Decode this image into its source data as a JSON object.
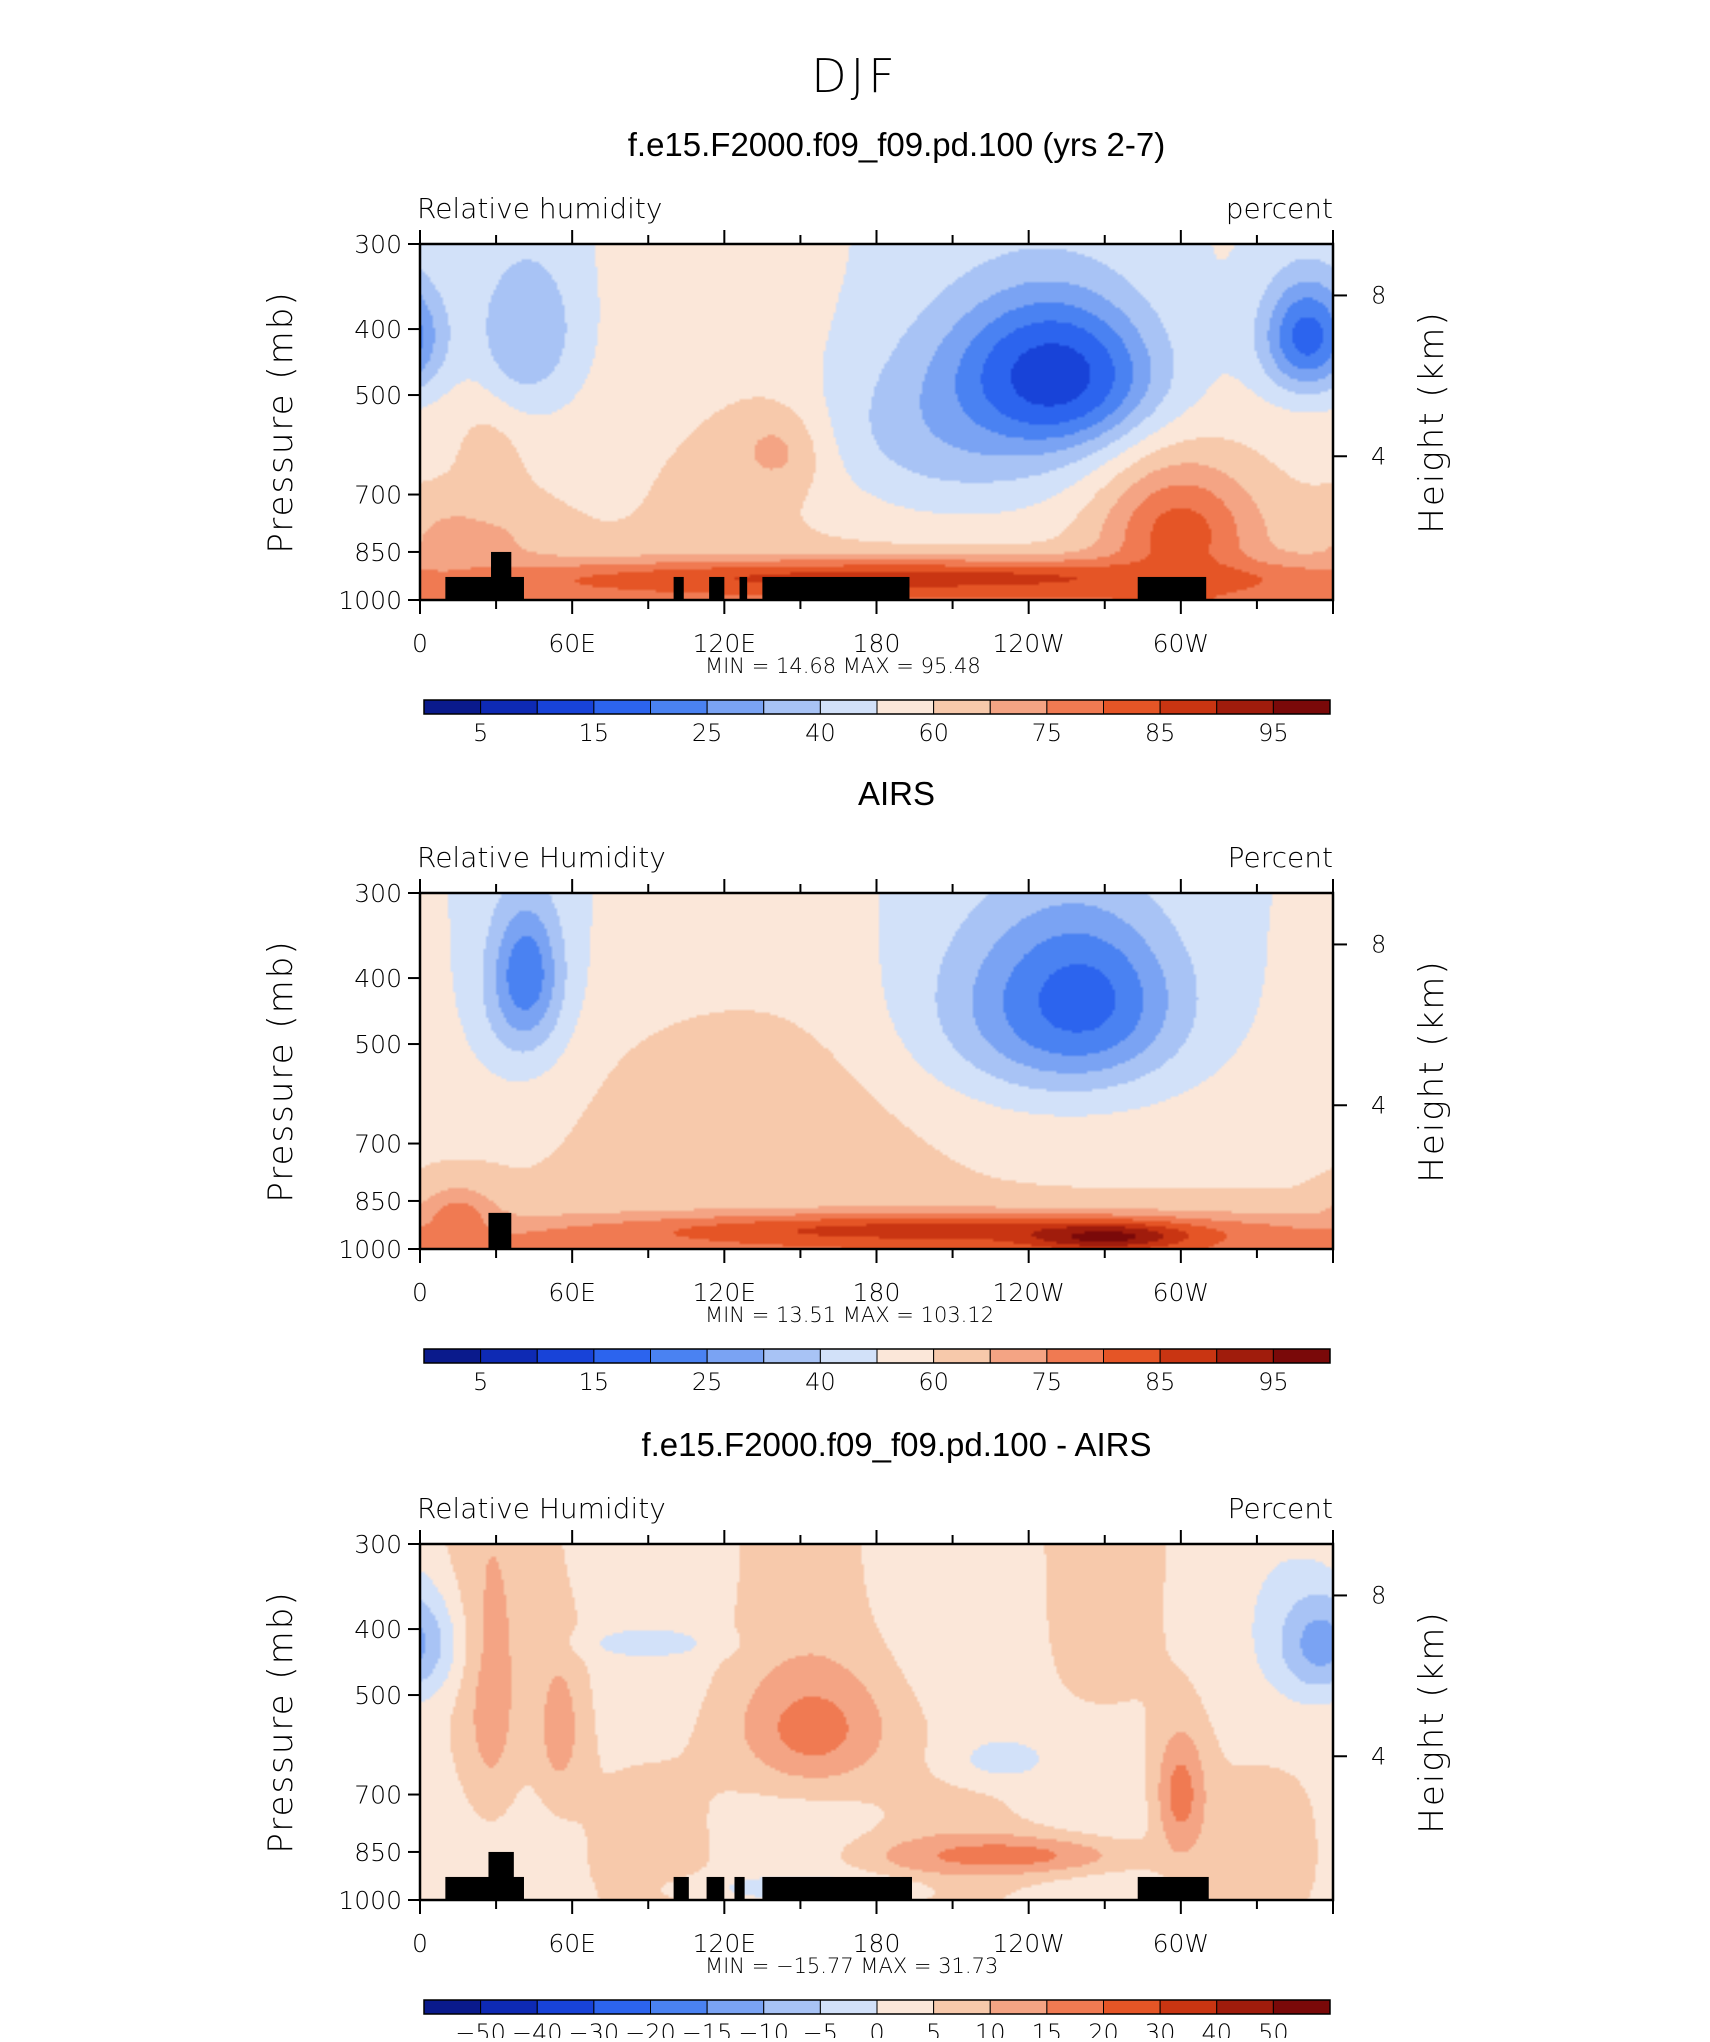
{
  "figure_title": "DJF",
  "chart_data": [
    {
      "type": "heatmap",
      "title": "f.e15.F2000.f09_f09.pd.100 (yrs 2-7)",
      "left_label": "Relative  humidity",
      "right_label": "percent",
      "ylabel": "Pressure (mb)",
      "y2label": "Height (km)",
      "xticks": [
        "0",
        "60E",
        "120E",
        "180",
        "120W",
        "60W"
      ],
      "xtick_lon": [
        0,
        60,
        120,
        180,
        240,
        300
      ],
      "xlim": [
        0,
        360
      ],
      "ylim": [
        1000,
        300
      ],
      "yticks": [
        "300",
        "400",
        "500",
        "700",
        "850",
        "1000"
      ],
      "ytick_values": [
        300,
        400,
        500,
        700,
        850,
        1000
      ],
      "y2ticks": [
        "8",
        "4"
      ],
      "y2tick_pressure": [
        357,
        615
      ],
      "min_label": "MIN =",
      "min_value": "14.68",
      "max_label": "MAX =",
      "max_value": "95.48",
      "colorbar_levels": [
        5,
        10,
        15,
        20,
        25,
        30,
        40,
        50,
        60,
        70,
        75,
        80,
        85,
        90,
        95
      ],
      "colorbar_labels": [
        "5",
        "15",
        "25",
        "40",
        "60",
        "75",
        "85",
        "95"
      ],
      "colorbar_colors": [
        "#0a1a8c",
        "#0e2ab4",
        "#1843d8",
        "#2c64ee",
        "#4a82f2",
        "#7aa3f3",
        "#a8c3f5",
        "#d2e1f9",
        "#fbe7d9",
        "#f7c9ab",
        "#f4a484",
        "#f07a52",
        "#e55526",
        "#c93512",
        "#a01c0c",
        "#7a0909"
      ],
      "blobs": [
        {
          "lon": 20,
          "p": 810,
          "rl": 28,
          "rp": 110,
          "level": 10
        },
        {
          "lon": 28,
          "p": 600,
          "rl": 14,
          "rp": 160,
          "level": 9
        },
        {
          "lon": 42,
          "p": 390,
          "rl": 12,
          "rp": 60,
          "level": 4
        },
        {
          "lon": 42,
          "p": 420,
          "rl": 22,
          "rp": 110,
          "level": 6
        },
        {
          "lon": 140,
          "p": 640,
          "rl": 50,
          "rp": 220,
          "level": 9
        },
        {
          "lon": 144,
          "p": 600,
          "rl": 18,
          "rp": 80,
          "level": 11
        },
        {
          "lon": 210,
          "p": 560,
          "rl": 60,
          "rp": 190,
          "level": 6
        },
        {
          "lon": 248,
          "p": 470,
          "rl": 42,
          "rp": 130,
          "level": 3
        },
        {
          "lon": 250,
          "p": 470,
          "rl": 26,
          "rp": 80,
          "level": 2
        },
        {
          "lon": 300,
          "p": 800,
          "rl": 30,
          "rp": 180,
          "level": 12
        },
        {
          "lon": 350,
          "p": 410,
          "rl": 18,
          "rp": 80,
          "level": 3
        },
        {
          "lon": 190,
          "p": 930,
          "rl": 170,
          "rp": 60,
          "level": 13
        }
      ],
      "land": [
        {
          "lon0": 10,
          "lon1": 41,
          "ptop": 925
        },
        {
          "lon0": 28,
          "lon1": 36,
          "ptop": 850
        },
        {
          "lon0": 100,
          "lon1": 104,
          "ptop": 925
        },
        {
          "lon0": 114,
          "lon1": 120,
          "ptop": 925
        },
        {
          "lon0": 126,
          "lon1": 129,
          "ptop": 925
        },
        {
          "lon0": 135,
          "lon1": 193,
          "ptop": 925
        },
        {
          "lon0": 283,
          "lon1": 310,
          "ptop": 925
        }
      ]
    },
    {
      "type": "heatmap",
      "title": "AIRS",
      "left_label": "Relative  Humidity",
      "right_label": "Percent",
      "ylabel": "Pressure (mb)",
      "y2label": "Height (km)",
      "xticks": [
        "0",
        "60E",
        "120E",
        "180",
        "120W",
        "60W"
      ],
      "xtick_lon": [
        0,
        60,
        120,
        180,
        240,
        300
      ],
      "xlim": [
        0,
        360
      ],
      "ylim": [
        1000,
        300
      ],
      "yticks": [
        "300",
        "400",
        "500",
        "700",
        "850",
        "1000"
      ],
      "ytick_values": [
        300,
        400,
        500,
        700,
        850,
        1000
      ],
      "y2ticks": [
        "8",
        "4"
      ],
      "y2tick_pressure": [
        357,
        615
      ],
      "min_label": "MIN =",
      "min_value": "13.51",
      "max_label": "MAX =",
      "max_value": "103.12",
      "colorbar_levels": [
        5,
        10,
        15,
        20,
        25,
        30,
        40,
        50,
        60,
        70,
        75,
        80,
        85,
        90,
        95
      ],
      "colorbar_labels": [
        "5",
        "15",
        "25",
        "40",
        "60",
        "75",
        "85",
        "95"
      ],
      "colorbar_colors": [
        "#0a1a8c",
        "#0e2ab4",
        "#1843d8",
        "#2c64ee",
        "#4a82f2",
        "#7aa3f3",
        "#a8c3f5",
        "#d2e1f9",
        "#fbe7d9",
        "#f7c9ab",
        "#f4a484",
        "#f07a52",
        "#e55526",
        "#c93512",
        "#a01c0c",
        "#7a0909"
      ],
      "blobs": [
        {
          "lon": 42,
          "p": 420,
          "rl": 20,
          "rp": 140,
          "level": 5
        },
        {
          "lon": 42,
          "p": 400,
          "rl": 10,
          "rp": 70,
          "level": 3
        },
        {
          "lon": 135,
          "p": 620,
          "rl": 80,
          "rp": 240,
          "level": 9
        },
        {
          "lon": 250,
          "p": 440,
          "rl": 55,
          "rp": 160,
          "level": 5
        },
        {
          "lon": 260,
          "p": 430,
          "rl": 30,
          "rp": 100,
          "level": 3
        },
        {
          "lon": 200,
          "p": 940,
          "rl": 130,
          "rp": 55,
          "level": 13
        },
        {
          "lon": 270,
          "p": 960,
          "rl": 30,
          "rp": 40,
          "level": 15
        },
        {
          "lon": 15,
          "p": 900,
          "rl": 15,
          "rp": 90,
          "level": 11
        }
      ],
      "land": [
        {
          "lon0": 27,
          "lon1": 36,
          "ptop": 885
        }
      ]
    },
    {
      "type": "heatmap",
      "title": "f.e15.F2000.f09_f09.pd.100 - AIRS",
      "left_label": "Relative  Humidity",
      "right_label": "Percent",
      "ylabel": "Pressure (mb)",
      "y2label": "Height (km)",
      "xticks": [
        "0",
        "60E",
        "120E",
        "180",
        "120W",
        "60W"
      ],
      "xtick_lon": [
        0,
        60,
        120,
        180,
        240,
        300
      ],
      "xlim": [
        0,
        360
      ],
      "ylim": [
        1000,
        300
      ],
      "yticks": [
        "300",
        "400",
        "500",
        "700",
        "850",
        "1000"
      ],
      "ytick_values": [
        300,
        400,
        500,
        700,
        850,
        1000
      ],
      "y2ticks": [
        "8",
        "4"
      ],
      "y2tick_pressure": [
        357,
        615
      ],
      "min_label": "MIN =",
      "min_value": "−15.77",
      "max_label": "MAX =",
      "max_value": "31.73",
      "colorbar_levels": [
        -50,
        -40,
        -30,
        -20,
        -15,
        -10,
        -5,
        0,
        5,
        10,
        15,
        20,
        30,
        40,
        50
      ],
      "colorbar_labels": [
        "−50",
        "−40",
        "−30",
        "−20",
        "−15",
        "−10",
        "−5",
        "0",
        "5",
        "10",
        "15",
        "20",
        "30",
        "40",
        "50"
      ],
      "colorbar_colors": [
        "#0a1a8c",
        "#0e2ab4",
        "#1843d8",
        "#2c64ee",
        "#4a82f2",
        "#7aa3f3",
        "#a8c3f5",
        "#d2e1f9",
        "#fbe7d9",
        "#f7c9ab",
        "#f4a484",
        "#f07a52",
        "#e55526",
        "#c93512",
        "#a01c0c",
        "#7a0909"
      ],
      "blobs": [
        {
          "lon": 155,
          "p": 560,
          "rl": 30,
          "rp": 120,
          "level": 11
        },
        {
          "lon": 230,
          "p": 860,
          "rl": 50,
          "rp": 60,
          "level": 11
        },
        {
          "lon": 28,
          "p": 500,
          "rl": 12,
          "rp": 250,
          "level": 10
        },
        {
          "lon": 55,
          "p": 560,
          "rl": 10,
          "rp": 150,
          "level": 10
        },
        {
          "lon": 300,
          "p": 700,
          "rl": 10,
          "rp": 150,
          "level": 11
        },
        {
          "lon": 355,
          "p": 420,
          "rl": 18,
          "rp": 80,
          "level": 5
        },
        {
          "lon": 90,
          "p": 420,
          "rl": 25,
          "rp": 20,
          "level": 7
        },
        {
          "lon": 150,
          "p": 960,
          "rl": 40,
          "rp": 40,
          "level": 7
        },
        {
          "lon": 230,
          "p": 620,
          "rl": 20,
          "rp": 50,
          "level": 7
        }
      ],
      "land": [
        {
          "lon0": 10,
          "lon1": 41,
          "ptop": 925
        },
        {
          "lon0": 27,
          "lon1": 37,
          "ptop": 850
        },
        {
          "lon0": 100,
          "lon1": 106,
          "ptop": 925
        },
        {
          "lon0": 113,
          "lon1": 120,
          "ptop": 925
        },
        {
          "lon0": 124,
          "lon1": 128,
          "ptop": 925
        },
        {
          "lon0": 135,
          "lon1": 194,
          "ptop": 925
        },
        {
          "lon0": 283,
          "lon1": 311,
          "ptop": 925
        }
      ]
    }
  ]
}
